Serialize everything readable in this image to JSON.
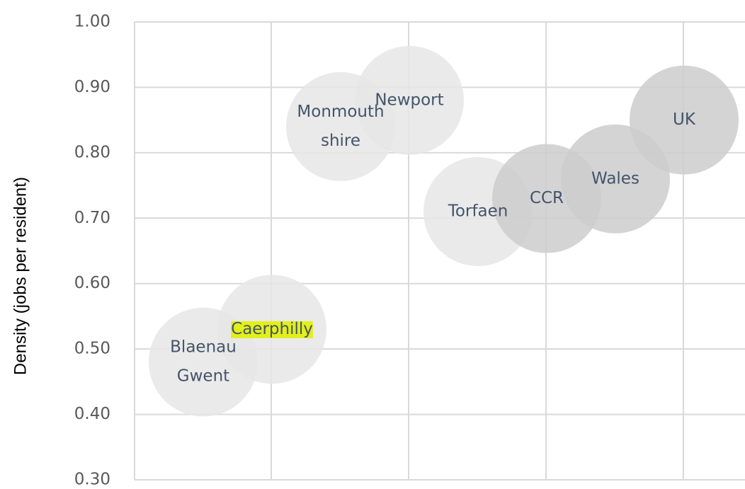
{
  "chart_data": {
    "type": "bubble",
    "y_label": "Density (jobs per resident)",
    "categories": [
      [
        "Blaenau",
        "Gwent"
      ],
      [
        "Caerphilly"
      ],
      [
        "Monmouth",
        "shire"
      ],
      [
        "Newport"
      ],
      [
        "Torfaen"
      ],
      [
        "CCR"
      ],
      [
        "Wales"
      ],
      [
        "UK"
      ]
    ],
    "values": [
      0.48,
      0.53,
      0.84,
      0.88,
      0.71,
      0.73,
      0.76,
      0.85
    ],
    "colors": [
      "#e6e6e6",
      "#e6e6e6",
      "#e6e6e6",
      "#e6e6e6",
      "#e6e6e6",
      "#cccccc",
      "#cccccc",
      "#cccccc"
    ],
    "highlight": {
      "index": 1,
      "color": "#e3ef1a"
    },
    "ylim": [
      0.3,
      1.0
    ],
    "yticks": [
      {
        "value": 0.3,
        "label": "0.30"
      },
      {
        "value": 0.4,
        "label": "0.40"
      },
      {
        "value": 0.5,
        "label": "0.50"
      },
      {
        "value": 0.6,
        "label": "0.60"
      },
      {
        "value": 0.7,
        "label": "0.70"
      },
      {
        "value": 0.8,
        "label": "0.80"
      },
      {
        "value": 0.9,
        "label": "0.90"
      },
      {
        "value": 1.0,
        "label": "1.00"
      }
    ],
    "grid": true
  }
}
